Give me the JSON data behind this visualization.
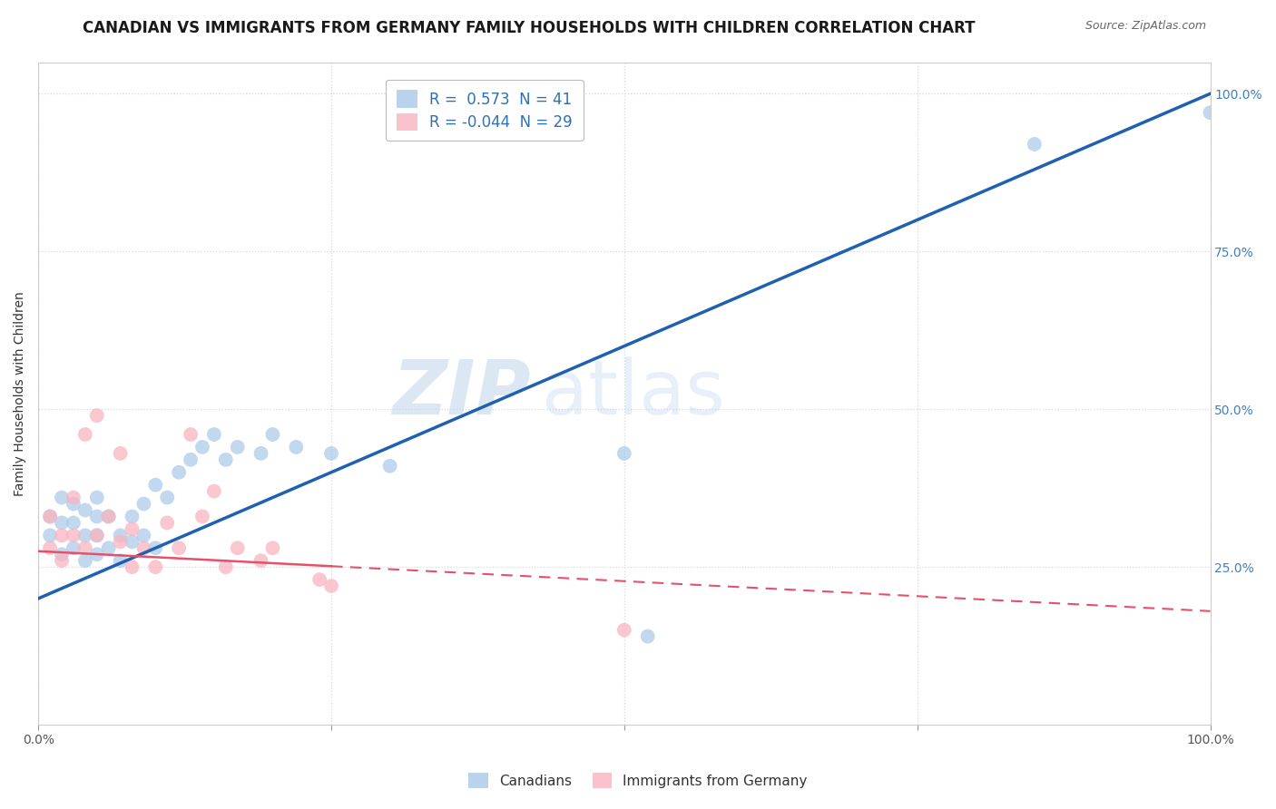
{
  "title": "CANADIAN VS IMMIGRANTS FROM GERMANY FAMILY HOUSEHOLDS WITH CHILDREN CORRELATION CHART",
  "source": "Source: ZipAtlas.com",
  "ylabel": "Family Households with Children",
  "xlabel": "",
  "canadian_R": 0.573,
  "canadian_N": 41,
  "immigrant_R": -0.044,
  "immigrant_N": 29,
  "xlim": [
    0,
    1
  ],
  "ylim": [
    0,
    1.05
  ],
  "xticks": [
    0,
    0.25,
    0.5,
    0.75,
    1.0
  ],
  "yticks": [
    0.25,
    0.5,
    0.75,
    1.0
  ],
  "xticklabels": [
    "0.0%",
    "",
    "",
    "",
    "100.0%"
  ],
  "yticklabels": [
    "25.0%",
    "50.0%",
    "75.0%",
    "100.0%"
  ],
  "canadian_color": "#a8c8e8",
  "immigrant_color": "#f9b4c0",
  "canadian_line_color": "#2060b0",
  "immigrant_line_color": "#e8506a",
  "watermark_zip": "ZIP",
  "watermark_atlas": "atlas",
  "background_color": "#ffffff",
  "grid_color": "#d0d8e0",
  "title_fontsize": 12,
  "label_fontsize": 10,
  "tick_fontsize": 10,
  "canadian_scatter_x": [
    0.01,
    0.01,
    0.02,
    0.02,
    0.02,
    0.03,
    0.03,
    0.03,
    0.04,
    0.04,
    0.04,
    0.05,
    0.05,
    0.05,
    0.05,
    0.06,
    0.06,
    0.07,
    0.07,
    0.08,
    0.08,
    0.09,
    0.09,
    0.1,
    0.1,
    0.11,
    0.12,
    0.13,
    0.14,
    0.15,
    0.16,
    0.17,
    0.19,
    0.2,
    0.22,
    0.25,
    0.3,
    0.5,
    0.52,
    0.85,
    1.0
  ],
  "canadian_scatter_y": [
    0.3,
    0.33,
    0.27,
    0.32,
    0.36,
    0.28,
    0.32,
    0.35,
    0.26,
    0.3,
    0.34,
    0.27,
    0.3,
    0.33,
    0.36,
    0.28,
    0.33,
    0.26,
    0.3,
    0.29,
    0.33,
    0.3,
    0.35,
    0.28,
    0.38,
    0.36,
    0.4,
    0.42,
    0.44,
    0.46,
    0.42,
    0.44,
    0.43,
    0.46,
    0.44,
    0.43,
    0.41,
    0.43,
    0.14,
    0.92,
    0.97
  ],
  "immigrant_scatter_x": [
    0.01,
    0.01,
    0.02,
    0.02,
    0.03,
    0.03,
    0.04,
    0.04,
    0.05,
    0.05,
    0.06,
    0.07,
    0.07,
    0.08,
    0.08,
    0.09,
    0.1,
    0.11,
    0.12,
    0.13,
    0.14,
    0.15,
    0.16,
    0.17,
    0.19,
    0.2,
    0.24,
    0.25,
    0.5
  ],
  "immigrant_scatter_y": [
    0.28,
    0.33,
    0.26,
    0.3,
    0.3,
    0.36,
    0.28,
    0.46,
    0.3,
    0.49,
    0.33,
    0.29,
    0.43,
    0.25,
    0.31,
    0.28,
    0.25,
    0.32,
    0.28,
    0.46,
    0.33,
    0.37,
    0.25,
    0.28,
    0.26,
    0.28,
    0.23,
    0.22,
    0.15
  ],
  "canadian_line_x0": 0.0,
  "canadian_line_y0": 0.2,
  "canadian_line_x1": 1.0,
  "canadian_line_y1": 1.0,
  "immigrant_line_x0": 0.0,
  "immigrant_line_y0": 0.275,
  "immigrant_line_x1": 1.0,
  "immigrant_line_y1": 0.18
}
